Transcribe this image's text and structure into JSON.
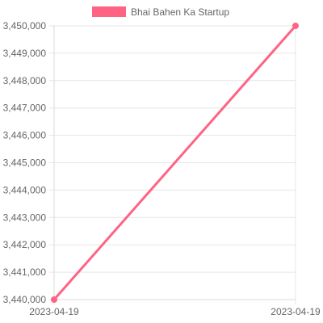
{
  "colors": {
    "series": "#ff6384",
    "grid": "#e6e6e6",
    "axis_text": "#666666"
  },
  "chart_data": {
    "type": "line",
    "x": [
      "2023-04-19",
      "2023-04-19"
    ],
    "series": [
      {
        "name": "Bhai Bahen Ka Startup",
        "values": [
          3440000,
          3450000
        ]
      }
    ],
    "y_ticks": [
      "3,450,000",
      "3,449,000",
      "3,448,000",
      "3,447,000",
      "3,446,000",
      "3,445,000",
      "3,444,000",
      "3,443,000",
      "3,442,000",
      "3,441,000",
      "3,440,000"
    ],
    "x_ticks": [
      "2023-04-19",
      "2023-04-19"
    ],
    "ylim": [
      3440000,
      3450000
    ],
    "legend": "top-center",
    "grid": true
  }
}
